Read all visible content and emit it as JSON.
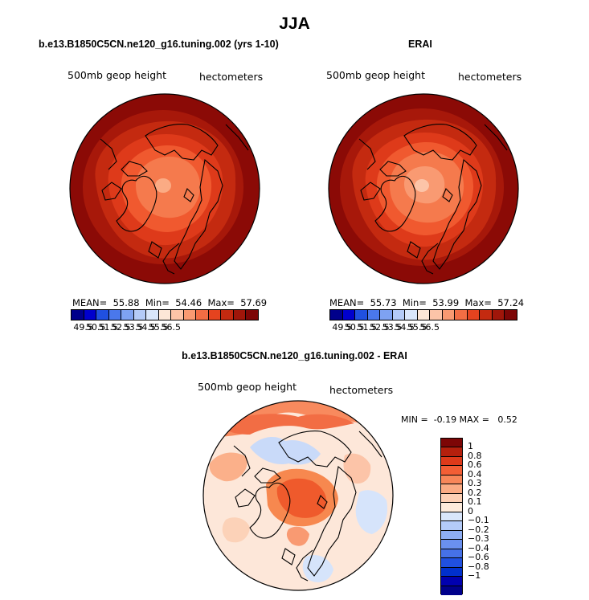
{
  "figure": {
    "title": "JJA",
    "left_panel": {
      "title": "b.e13.B1850C5CN.ne120_g16.tuning.002 (yrs 1-10)",
      "var_label": "500mb geop height",
      "units_label": "hectometers",
      "stats": {
        "mean_label": "MEAN=",
        "mean": "55.88",
        "min_label": "Min=",
        "min": "54.46",
        "max_label": "Max=",
        "max": "57.69"
      }
    },
    "right_panel": {
      "title": "ERAI",
      "var_label": "500mb geop height",
      "units_label": "hectometers",
      "stats": {
        "mean_label": "MEAN=",
        "mean": "55.73",
        "min_label": "Min=",
        "min": "53.99",
        "max_label": "Max=",
        "max": "57.24"
      }
    },
    "diff_panel": {
      "title": "b.e13.B1850C5CN.ne120_g16.tuning.002 - ERAI",
      "var_label": "500mb geop height",
      "units_label": "hectometers",
      "stats": {
        "min_label": "MIN =",
        "min": "-0.19",
        "max_label": "MAX =",
        "max": "0.52"
      }
    }
  },
  "colors": {
    "abs_scale": [
      "#00008b",
      "#0000cd",
      "#2050e0",
      "#4a78ec",
      "#7ea2f2",
      "#b4cbf8",
      "#d9e6fb",
      "#fde7d7",
      "#fcc4a8",
      "#f99a72",
      "#f26d44",
      "#e5431f",
      "#c42a10",
      "#a0160a",
      "#7d0606"
    ],
    "diff_scale": [
      "#7d0606",
      "#b5200d",
      "#de3a1a",
      "#f35e35",
      "#f88659",
      "#fbab84",
      "#fdd0b5",
      "#fdebdc",
      "#d9e6fb",
      "#b4cbf8",
      "#8eaef4",
      "#6a90ef",
      "#4671e7",
      "#2050e0",
      "#0030cd",
      "#0000b0",
      "#00008b"
    ],
    "continent": "#000000"
  },
  "chart_data": [
    {
      "type": "heatmap",
      "title": "b.e13.B1850C5CN.ne120_g16.tuning.002 (yrs 1-10)",
      "subtitle": "500mb geop height",
      "units": "hectometers",
      "projection": "north polar stereographic",
      "colorbar_ticks": [
        "49.5",
        "50.5",
        "51.5",
        "52.5",
        "53.5",
        "54.5",
        "55.5",
        "56.5"
      ],
      "mean": 55.88,
      "min": 54.46,
      "max": 57.69
    },
    {
      "type": "heatmap",
      "title": "ERAI",
      "subtitle": "500mb geop height",
      "units": "hectometers",
      "projection": "north polar stereographic",
      "colorbar_ticks": [
        "49.5",
        "50.5",
        "51.5",
        "52.5",
        "53.5",
        "54.5",
        "55.5",
        "56.5"
      ],
      "mean": 55.73,
      "min": 53.99,
      "max": 57.24
    },
    {
      "type": "heatmap",
      "title": "b.e13.B1850C5CN.ne120_g16.tuning.002 - ERAI",
      "subtitle": "500mb geop height",
      "units": "hectometers",
      "projection": "north polar stereographic",
      "colorbar_ticks": [
        "1",
        "0.8",
        "0.6",
        "0.4",
        "0.3",
        "0.2",
        "0.1",
        "0",
        "−0.1",
        "−0.2",
        "−0.3",
        "−0.4",
        "−0.6",
        "−0.8",
        "−1"
      ],
      "min": -0.19,
      "max": 0.52
    }
  ]
}
